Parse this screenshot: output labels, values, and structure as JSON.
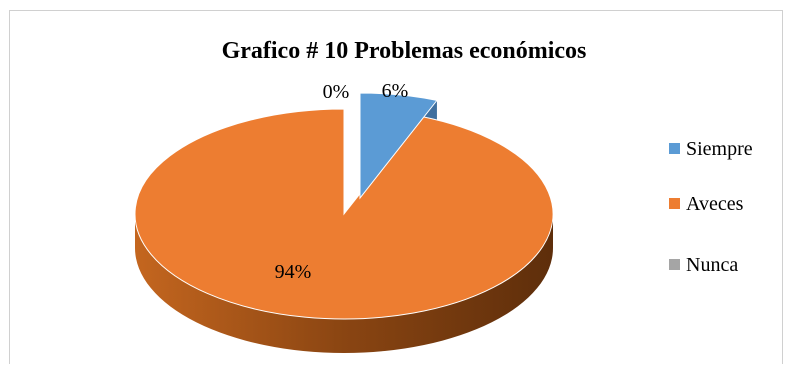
{
  "chart_data": {
    "type": "pie",
    "title": "Grafico # 10 Problemas económicos",
    "categories": [
      "Siempre",
      "Aveces",
      "Nunca"
    ],
    "values": [
      6,
      94,
      0
    ],
    "data_labels": [
      "6%",
      "94%",
      "0%"
    ],
    "colors": [
      "#5B9BD5",
      "#ED7D31",
      "#A5A5A5"
    ],
    "style": "3d-exploded",
    "legend_position": "right"
  }
}
